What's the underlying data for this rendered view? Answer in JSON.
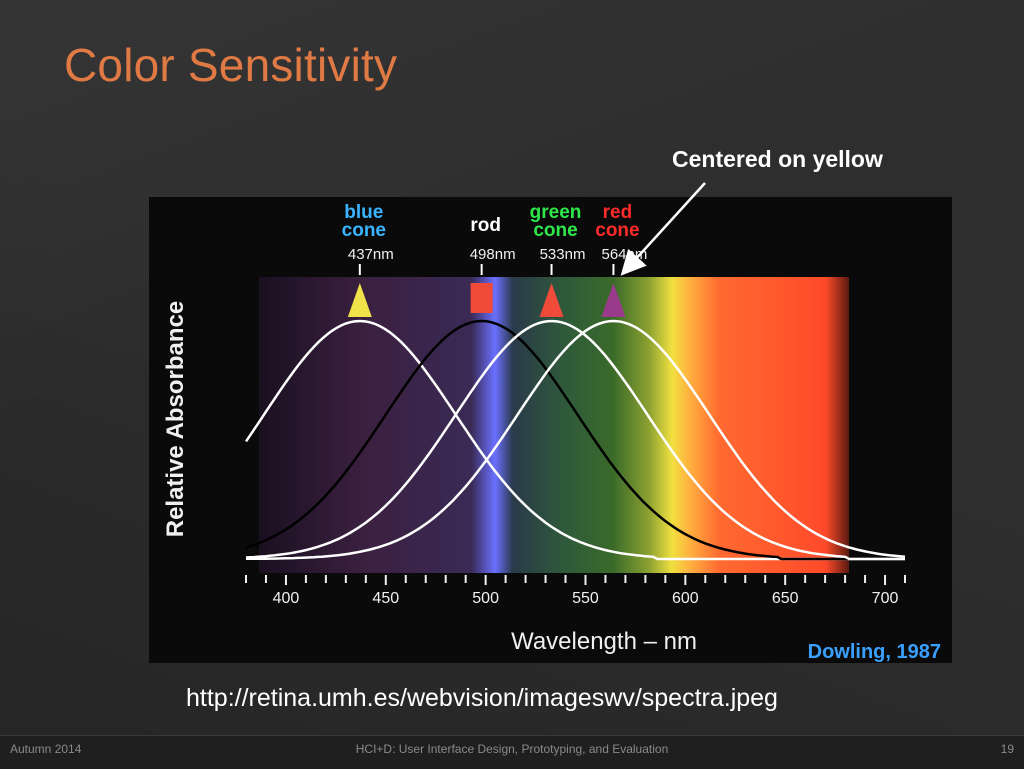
{
  "slide": {
    "title": "Color Sensitivity",
    "callout": "Centered on yellow",
    "url": "http://retina.umh.es/webvision/imageswv/spectra.jpeg",
    "footer_left": "Autumn 2014",
    "footer_center": "HCI+D: User Interface Design, Prototyping, and Evaluation",
    "page_number": "19",
    "title_color": "#e07a45"
  },
  "chart_data": {
    "type": "line",
    "xlabel": "Wavelength – nm",
    "ylabel": "Relative Absorbance",
    "credit": "Dowling, 1987",
    "xlim": [
      380,
      710
    ],
    "x_ticks": [
      400,
      450,
      500,
      550,
      600,
      650,
      700
    ],
    "grid": false,
    "series": [
      {
        "name": "blue cone",
        "peak_nm": 437,
        "peak_label": "437nm",
        "marker": "triangle",
        "marker_color": "#f2e24a",
        "label_color": "#39b4ff",
        "line_color": "#ffffff"
      },
      {
        "name": "rod",
        "peak_nm": 498,
        "peak_label": "498nm",
        "marker": "square",
        "marker_color": "#f04a3a",
        "label_color": "#ffffff",
        "line_color": "#000000"
      },
      {
        "name": "green cone",
        "peak_nm": 533,
        "peak_label": "533nm",
        "marker": "triangle",
        "marker_color": "#f04a3a",
        "label_color": "#2ee84a",
        "line_color": "#ffffff"
      },
      {
        "name": "red cone",
        "peak_nm": 564,
        "peak_label": "564nm",
        "marker": "triangle",
        "marker_color": "#9a3a8a",
        "label_color": "#ff2a2a",
        "line_color": "#ffffff"
      }
    ],
    "credit_color": "#3aa0ff"
  }
}
